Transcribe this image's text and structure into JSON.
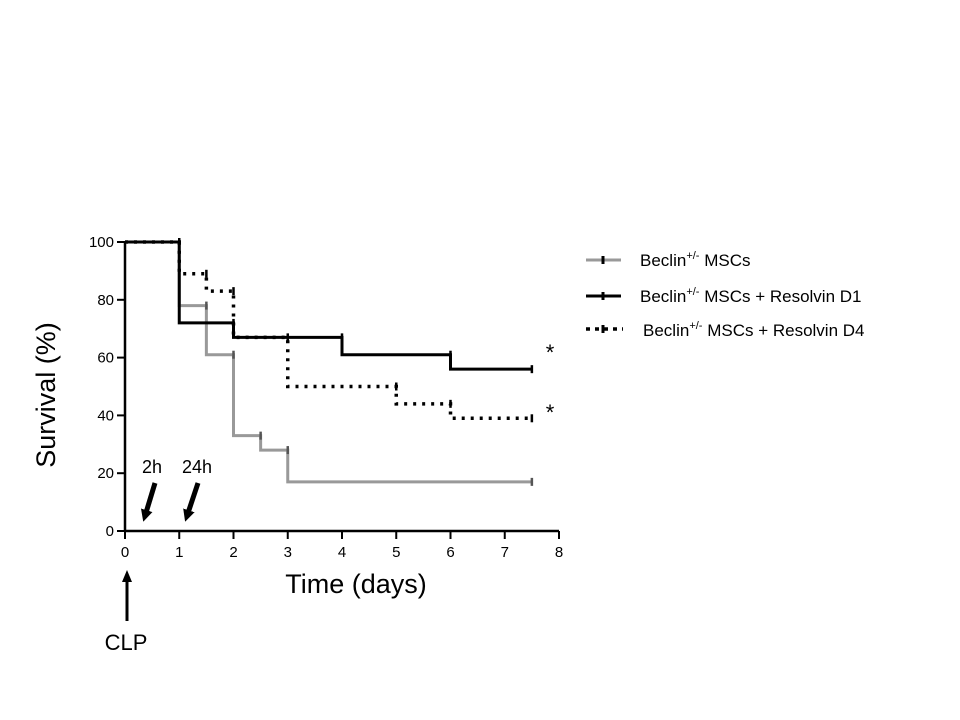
{
  "chart_data": {
    "type": "line",
    "subtype": "kaplan-meier survival curve",
    "xlabel": "Time (days)",
    "ylabel": "Survival (%)",
    "xlim": [
      0,
      8
    ],
    "ylim": [
      0,
      100
    ],
    "xticks": [
      "0",
      "1",
      "2",
      "3",
      "4",
      "5",
      "6",
      "7",
      "8"
    ],
    "yticks": [
      "0",
      "20",
      "40",
      "60",
      "80",
      "100"
    ],
    "grid": false,
    "legend_position": "right",
    "series": [
      {
        "name": "Beclin+/- MSCs",
        "name_base": "Beclin",
        "name_sup": "+/-",
        "name_rest": " MSCs",
        "color": "#999999",
        "dash": "solid",
        "x": [
          0,
          1,
          1.5,
          2,
          2.5,
          3,
          7.5
        ],
        "y": [
          100,
          78,
          61,
          33,
          28,
          17,
          17
        ]
      },
      {
        "name": "Beclin+/- MSCs + Resolvin D1",
        "name_base": "Beclin",
        "name_sup": "+/-",
        "name_rest": " MSCs + Resolvin D1",
        "color": "#000000",
        "dash": "solid",
        "x": [
          0,
          1,
          2,
          4,
          6,
          7.5
        ],
        "y": [
          100,
          72,
          67,
          61,
          56,
          56
        ]
      },
      {
        "name": "Beclin+/- MSCs + Resolvin D4",
        "name_base": "Beclin",
        "name_sup": "+/-",
        "name_rest": " MSCs + Resolvin D4",
        "color": "#000000",
        "dash": "dotted",
        "x": [
          0,
          1,
          1.5,
          2,
          3,
          5,
          6,
          7.5
        ],
        "y": [
          100,
          89,
          83,
          67,
          50,
          44,
          39,
          39
        ]
      }
    ],
    "significance_markers": [
      "*",
      "*"
    ],
    "annotations": [
      {
        "label": "2h",
        "x": 0.3
      },
      {
        "label": "24h",
        "x": 1.1
      }
    ],
    "below_axis_marker": {
      "label": "CLP",
      "x": 0
    }
  }
}
